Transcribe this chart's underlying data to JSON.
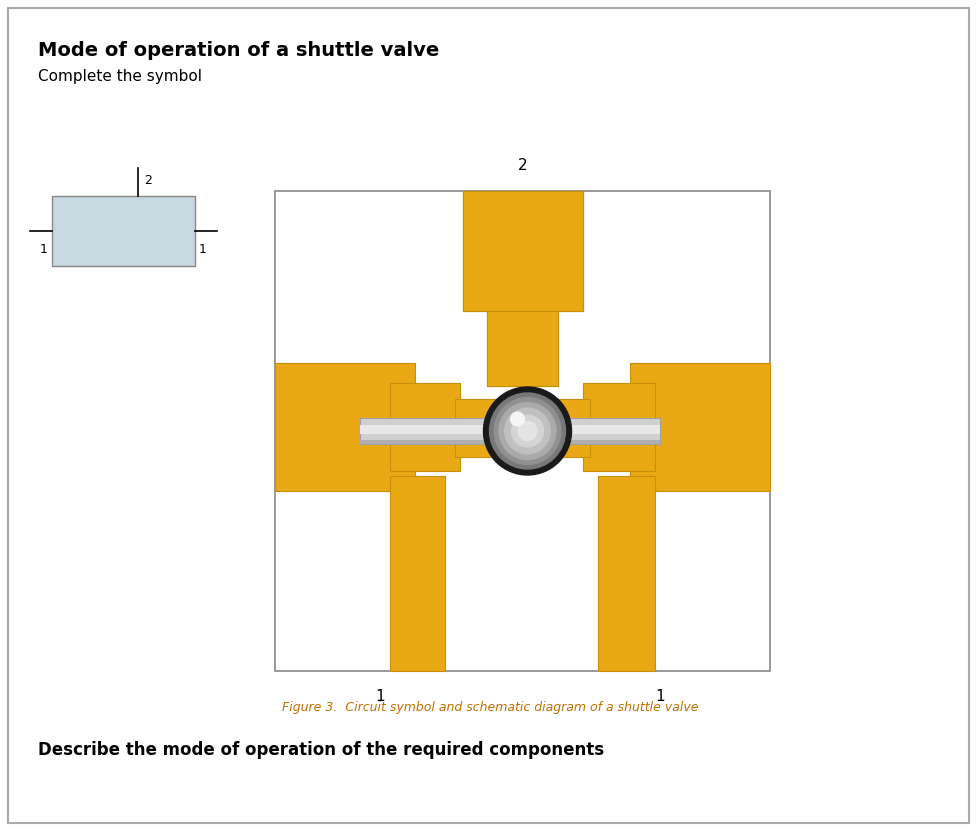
{
  "title": "Mode of operation of a shuttle valve",
  "subtitle": "Complete the symbol",
  "caption": "Figure 3.  Circuit symbol and schematic diagram of a shuttle valve",
  "bottom_text": "Describe the mode of operation of the required components",
  "gold_color": "#E8A914",
  "gold_dark": "#C8900A",
  "black_color": "#1A1A1A",
  "white": "#FFFFFF",
  "symbol_fill": "#C8D8E0",
  "bg_color": "#FFFFFF",
  "caption_color": "#C07000"
}
